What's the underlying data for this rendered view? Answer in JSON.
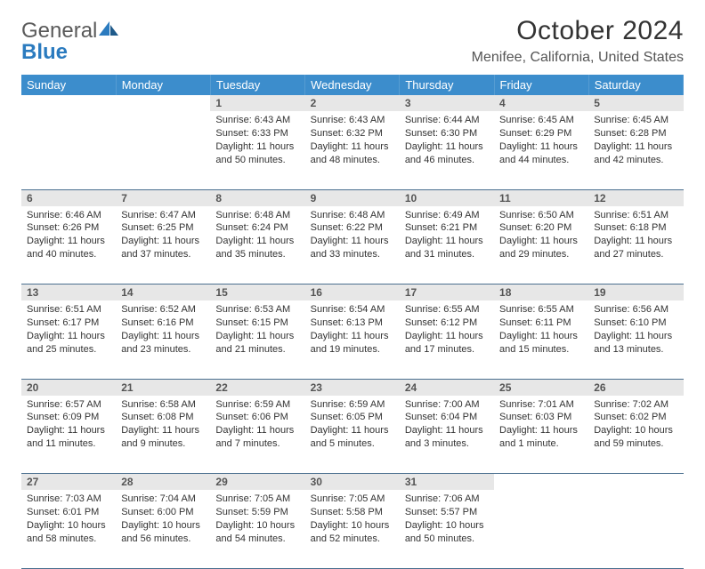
{
  "brand": {
    "word1": "General",
    "word2": "Blue"
  },
  "title": "October 2024",
  "location": "Menifee, California, United States",
  "colors": {
    "header_bg": "#3c8dcc",
    "header_text": "#ffffff",
    "daynum_bg": "#e7e7e7",
    "row_border": "#4a6f8f",
    "logo_blue": "#2b7bbf",
    "text": "#333333"
  },
  "dayNames": [
    "Sunday",
    "Monday",
    "Tuesday",
    "Wednesday",
    "Thursday",
    "Friday",
    "Saturday"
  ],
  "weeks": [
    [
      null,
      null,
      {
        "n": "1",
        "sr": "6:43 AM",
        "ss": "6:33 PM",
        "dl": "11 hours and 50 minutes."
      },
      {
        "n": "2",
        "sr": "6:43 AM",
        "ss": "6:32 PM",
        "dl": "11 hours and 48 minutes."
      },
      {
        "n": "3",
        "sr": "6:44 AM",
        "ss": "6:30 PM",
        "dl": "11 hours and 46 minutes."
      },
      {
        "n": "4",
        "sr": "6:45 AM",
        "ss": "6:29 PM",
        "dl": "11 hours and 44 minutes."
      },
      {
        "n": "5",
        "sr": "6:45 AM",
        "ss": "6:28 PM",
        "dl": "11 hours and 42 minutes."
      }
    ],
    [
      {
        "n": "6",
        "sr": "6:46 AM",
        "ss": "6:26 PM",
        "dl": "11 hours and 40 minutes."
      },
      {
        "n": "7",
        "sr": "6:47 AM",
        "ss": "6:25 PM",
        "dl": "11 hours and 37 minutes."
      },
      {
        "n": "8",
        "sr": "6:48 AM",
        "ss": "6:24 PM",
        "dl": "11 hours and 35 minutes."
      },
      {
        "n": "9",
        "sr": "6:48 AM",
        "ss": "6:22 PM",
        "dl": "11 hours and 33 minutes."
      },
      {
        "n": "10",
        "sr": "6:49 AM",
        "ss": "6:21 PM",
        "dl": "11 hours and 31 minutes."
      },
      {
        "n": "11",
        "sr": "6:50 AM",
        "ss": "6:20 PM",
        "dl": "11 hours and 29 minutes."
      },
      {
        "n": "12",
        "sr": "6:51 AM",
        "ss": "6:18 PM",
        "dl": "11 hours and 27 minutes."
      }
    ],
    [
      {
        "n": "13",
        "sr": "6:51 AM",
        "ss": "6:17 PM",
        "dl": "11 hours and 25 minutes."
      },
      {
        "n": "14",
        "sr": "6:52 AM",
        "ss": "6:16 PM",
        "dl": "11 hours and 23 minutes."
      },
      {
        "n": "15",
        "sr": "6:53 AM",
        "ss": "6:15 PM",
        "dl": "11 hours and 21 minutes."
      },
      {
        "n": "16",
        "sr": "6:54 AM",
        "ss": "6:13 PM",
        "dl": "11 hours and 19 minutes."
      },
      {
        "n": "17",
        "sr": "6:55 AM",
        "ss": "6:12 PM",
        "dl": "11 hours and 17 minutes."
      },
      {
        "n": "18",
        "sr": "6:55 AM",
        "ss": "6:11 PM",
        "dl": "11 hours and 15 minutes."
      },
      {
        "n": "19",
        "sr": "6:56 AM",
        "ss": "6:10 PM",
        "dl": "11 hours and 13 minutes."
      }
    ],
    [
      {
        "n": "20",
        "sr": "6:57 AM",
        "ss": "6:09 PM",
        "dl": "11 hours and 11 minutes."
      },
      {
        "n": "21",
        "sr": "6:58 AM",
        "ss": "6:08 PM",
        "dl": "11 hours and 9 minutes."
      },
      {
        "n": "22",
        "sr": "6:59 AM",
        "ss": "6:06 PM",
        "dl": "11 hours and 7 minutes."
      },
      {
        "n": "23",
        "sr": "6:59 AM",
        "ss": "6:05 PM",
        "dl": "11 hours and 5 minutes."
      },
      {
        "n": "24",
        "sr": "7:00 AM",
        "ss": "6:04 PM",
        "dl": "11 hours and 3 minutes."
      },
      {
        "n": "25",
        "sr": "7:01 AM",
        "ss": "6:03 PM",
        "dl": "11 hours and 1 minute."
      },
      {
        "n": "26",
        "sr": "7:02 AM",
        "ss": "6:02 PM",
        "dl": "10 hours and 59 minutes."
      }
    ],
    [
      {
        "n": "27",
        "sr": "7:03 AM",
        "ss": "6:01 PM",
        "dl": "10 hours and 58 minutes."
      },
      {
        "n": "28",
        "sr": "7:04 AM",
        "ss": "6:00 PM",
        "dl": "10 hours and 56 minutes."
      },
      {
        "n": "29",
        "sr": "7:05 AM",
        "ss": "5:59 PM",
        "dl": "10 hours and 54 minutes."
      },
      {
        "n": "30",
        "sr": "7:05 AM",
        "ss": "5:58 PM",
        "dl": "10 hours and 52 minutes."
      },
      {
        "n": "31",
        "sr": "7:06 AM",
        "ss": "5:57 PM",
        "dl": "10 hours and 50 minutes."
      },
      null,
      null
    ]
  ],
  "labels": {
    "sunrise": "Sunrise:",
    "sunset": "Sunset:",
    "daylight": "Daylight:"
  }
}
